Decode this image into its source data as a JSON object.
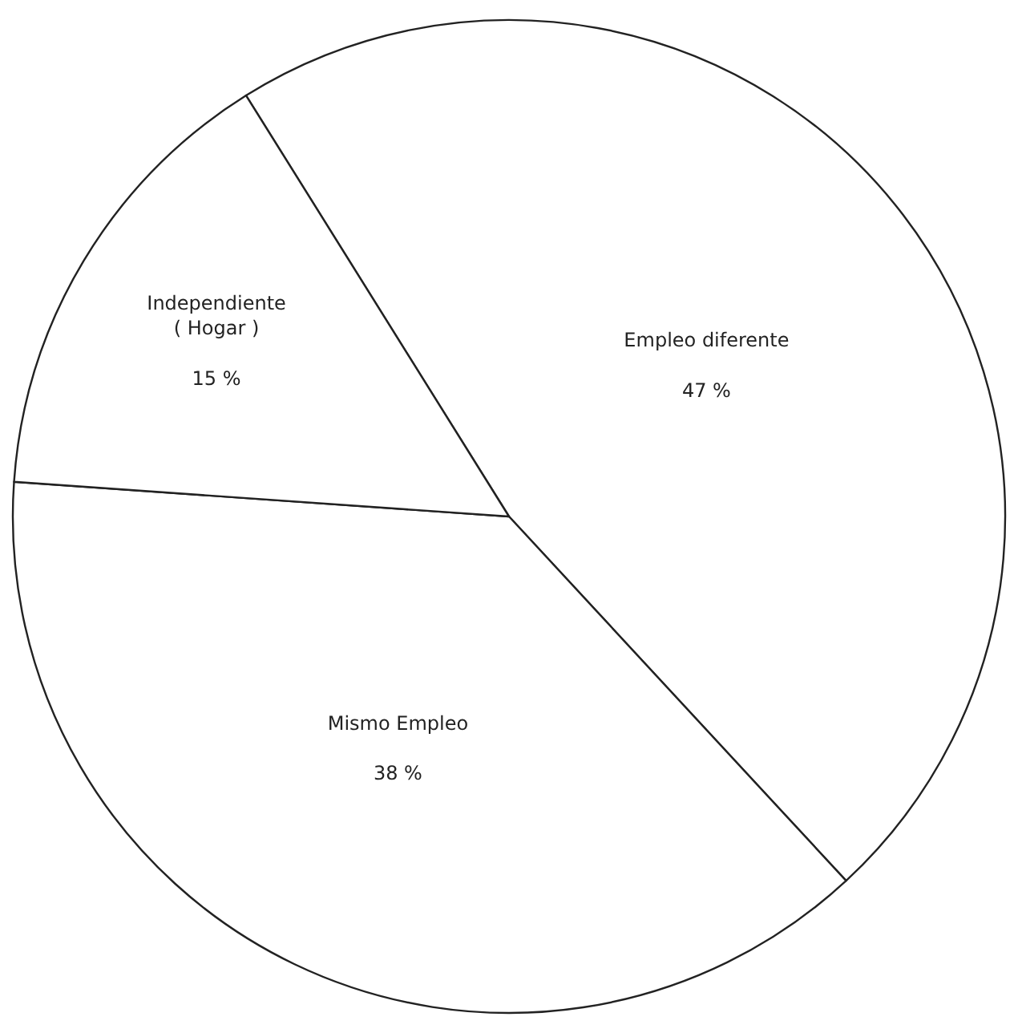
{
  "chart_data": {
    "type": "pie",
    "categories": [
      "Empleo diferente",
      "Mismo Empleo",
      "Independiente ( Hogar )"
    ],
    "values": [
      47,
      38,
      15
    ],
    "value_labels": [
      "47 %",
      "38 %",
      "15 %"
    ],
    "colors": [
      "#ffffff",
      "#ffffff",
      "#ffffff"
    ],
    "legend": false
  }
}
